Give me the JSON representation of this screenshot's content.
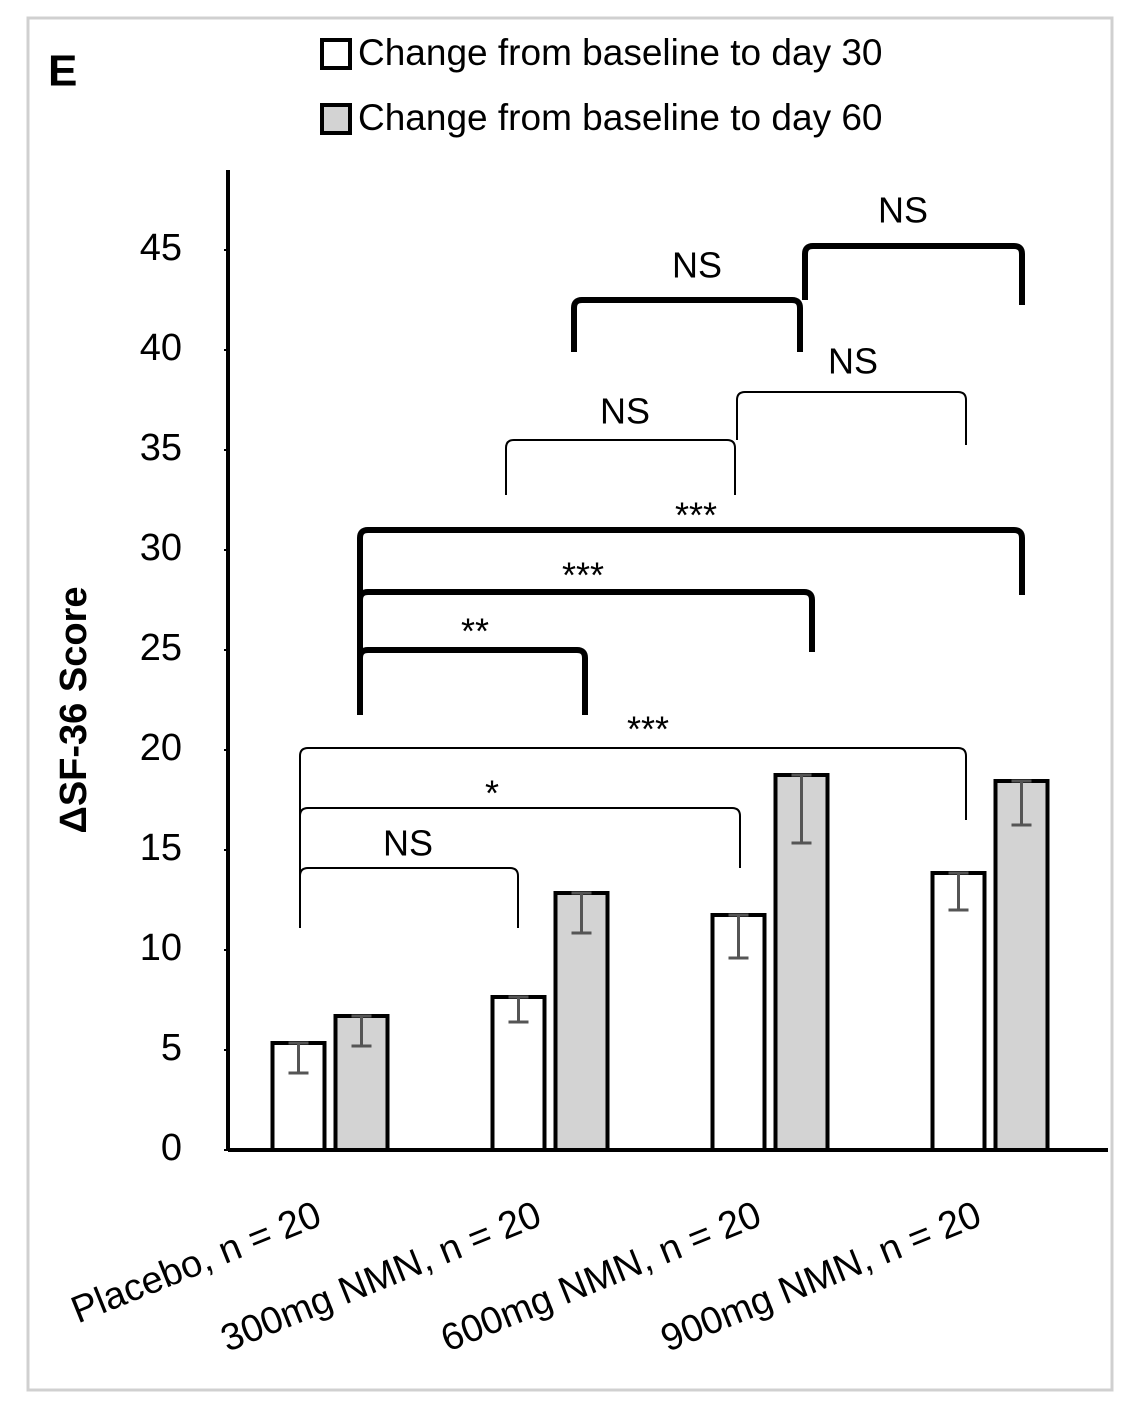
{
  "chart_data": {
    "type": "bar",
    "panel_label": "E",
    "ylabel": "ΔSF-36 Score",
    "categories": [
      "Placebo, n = 20",
      "300mg NMN, n = 20",
      "600mg NMN, n = 20",
      "900mg NMN, n = 20"
    ],
    "series": [
      {
        "name": "Change from baseline to day 30",
        "color": "#ffffff",
        "values": [
          5.35,
          7.65,
          11.75,
          13.85
        ],
        "errors": [
          1.5,
          1.25,
          2.15,
          1.85
        ]
      },
      {
        "name": "Change from baseline to day 60",
        "color": "#d3d3d3",
        "values": [
          6.7,
          12.85,
          18.75,
          18.45
        ],
        "errors": [
          1.5,
          2.0,
          3.4,
          2.2
        ]
      }
    ],
    "ylim": [
      0,
      49
    ],
    "yticks": [
      0,
      5,
      10,
      15,
      20,
      25,
      30,
      35,
      40,
      45
    ],
    "grid": false,
    "annotations": [
      "NS",
      "*",
      "***",
      "NS",
      "NS",
      "**",
      "***",
      "***",
      "NS",
      "NS"
    ]
  }
}
